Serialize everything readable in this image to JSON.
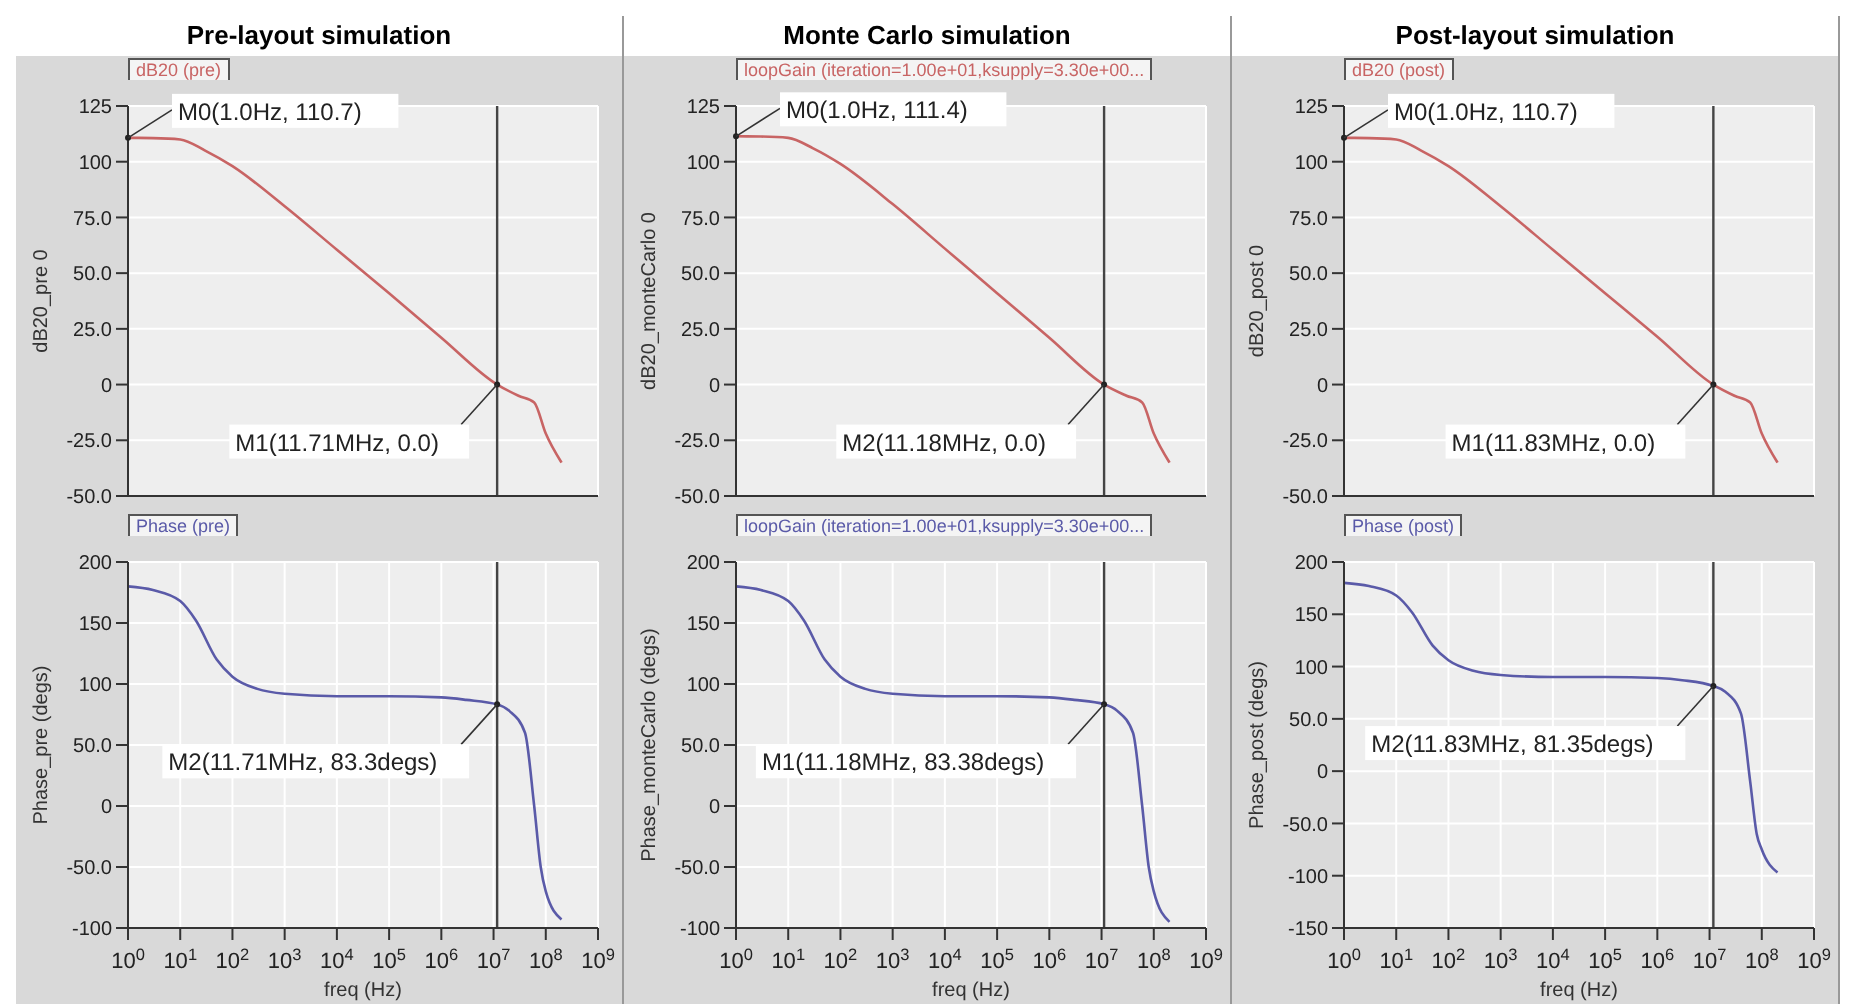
{
  "chart_data": [
    {
      "type": "line",
      "title": "Pre-layout simulation",
      "ylabel": "dB20_pre 0",
      "tick_labels": "y",
      "log": "x",
      "grid": true,
      "legend": "top left",
      "xlim": [
        1,
        1000000000
      ],
      "xticks": [
        {
          "value": 1,
          "label": null
        },
        {
          "value": 10,
          "label": null
        },
        {
          "value": 100,
          "label": null
        },
        {
          "value": 1000,
          "label": null
        },
        {
          "value": 10000,
          "label": null
        },
        {
          "value": 100000,
          "label": null
        },
        {
          "value": 1000000,
          "label": null
        },
        {
          "value": 10000000,
          "label": null
        },
        {
          "value": 100000000,
          "label": null
        },
        {
          "value": 1000000000,
          "label": null
        }
      ],
      "ylim": [
        -50,
        125
      ],
      "yticks": [
        {
          "value": -50,
          "label": "-50.0"
        },
        {
          "value": -25,
          "label": "-25.0"
        },
        0,
        {
          "value": 25,
          "label": "25.0"
        },
        {
          "value": 50,
          "label": "50.0"
        },
        {
          "value": 75,
          "label": "75.0"
        },
        100,
        125
      ],
      "x": [
        1,
        3,
        10,
        30,
        100,
        1000,
        10000,
        100000,
        1000000,
        11710000,
        30000000,
        60000000,
        100000000,
        200000000
      ],
      "series": [
        {
          "name": "dB20 (pre)",
          "color": "#c86464",
          "values": [
            110.7,
            110.6,
            110,
            105,
            98,
            80,
            60.5,
            41,
            21,
            0,
            -5,
            -8,
            -22,
            -35
          ]
        }
      ],
      "ref_lines": [
        {
          "axis": "x",
          "value": 11710000,
          "color": "#444444"
        }
      ],
      "annotations": [
        {
          "text": "M0(1.0Hz, 110.7)",
          "x": 1,
          "y": 110.7
        },
        {
          "text": "M1(11.71MHz, 0.0)",
          "x": 11710000,
          "y": 0
        }
      ]
    },
    {
      "type": "line",
      "title": "Monte Carlo simulation",
      "ylabel": "dB20_monteCarlo 0",
      "tick_labels": "y",
      "log": "x",
      "grid": true,
      "legend": "top left",
      "xlim": [
        1,
        1000000000
      ],
      "xticks": [
        {
          "value": 1,
          "label": null
        },
        {
          "value": 10,
          "label": null
        },
        {
          "value": 100,
          "label": null
        },
        {
          "value": 1000,
          "label": null
        },
        {
          "value": 10000,
          "label": null
        },
        {
          "value": 100000,
          "label": null
        },
        {
          "value": 1000000,
          "label": null
        },
        {
          "value": 10000000,
          "label": null
        },
        {
          "value": 100000000,
          "label": null
        },
        {
          "value": 1000000000,
          "label": null
        }
      ],
      "ylim": [
        -50,
        125
      ],
      "yticks": [
        {
          "value": -50,
          "label": "-50.0"
        },
        {
          "value": -25,
          "label": "-25.0"
        },
        0,
        {
          "value": 25,
          "label": "25.0"
        },
        {
          "value": 50,
          "label": "50.0"
        },
        {
          "value": 75,
          "label": "75.0"
        },
        100,
        125
      ],
      "x": [
        1,
        3,
        10,
        30,
        100,
        1000,
        10000,
        100000,
        1000000,
        11180000,
        30000000,
        60000000,
        100000000,
        200000000
      ],
      "series": [
        {
          "name": "loopGain (iteration=1.00e+01,ksupply=3.30e+00...",
          "color": "#c86464",
          "values": [
            111.4,
            111.3,
            110.7,
            106,
            99,
            81,
            61,
            41,
            21,
            0,
            -5,
            -8,
            -22,
            -35
          ]
        }
      ],
      "ref_lines": [
        {
          "axis": "x",
          "value": 11180000,
          "color": "#444444"
        }
      ],
      "annotations": [
        {
          "text": "M0(1.0Hz, 111.4)",
          "x": 1,
          "y": 111.4
        },
        {
          "text": "M2(11.18MHz, 0.0)",
          "x": 11180000,
          "y": 0
        }
      ]
    },
    {
      "type": "line",
      "title": "Post-layout simulation",
      "ylabel": "dB20_post 0",
      "tick_labels": "y",
      "log": "x",
      "grid": true,
      "legend": "top left",
      "xlim": [
        1,
        1000000000
      ],
      "xticks": [
        {
          "value": 1,
          "label": null
        },
        {
          "value": 10,
          "label": null
        },
        {
          "value": 100,
          "label": null
        },
        {
          "value": 1000,
          "label": null
        },
        {
          "value": 10000,
          "label": null
        },
        {
          "value": 100000,
          "label": null
        },
        {
          "value": 1000000,
          "label": null
        },
        {
          "value": 10000000,
          "label": null
        },
        {
          "value": 100000000,
          "label": null
        },
        {
          "value": 1000000000,
          "label": null
        }
      ],
      "ylim": [
        -50,
        125
      ],
      "yticks": [
        {
          "value": -50,
          "label": "-50.0"
        },
        {
          "value": -25,
          "label": "-25.0"
        },
        0,
        {
          "value": 25,
          "label": "25.0"
        },
        {
          "value": 50,
          "label": "50.0"
        },
        {
          "value": 75,
          "label": "75.0"
        },
        100,
        125
      ],
      "x": [
        1,
        3,
        10,
        30,
        100,
        1000,
        10000,
        100000,
        1000000,
        11830000,
        30000000,
        60000000,
        100000000,
        200000000
      ],
      "series": [
        {
          "name": "dB20 (post)",
          "color": "#c86464",
          "values": [
            110.7,
            110.6,
            110,
            105,
            98,
            80,
            60.5,
            41,
            21.5,
            0,
            -5,
            -8,
            -22,
            -35
          ]
        }
      ],
      "ref_lines": [
        {
          "axis": "x",
          "value": 11830000,
          "color": "#444444"
        }
      ],
      "annotations": [
        {
          "text": "M0(1.0Hz, 110.7)",
          "x": 1,
          "y": 110.7
        },
        {
          "text": "M1(11.83MHz, 0.0)",
          "x": 11830000,
          "y": 0
        }
      ]
    },
    {
      "type": "line",
      "xlabel": "freq (Hz)",
      "ylabel": "Phase_pre (degs)",
      "log": "x",
      "grid": true,
      "legend": "top left",
      "xlim": [
        1,
        1000000000
      ],
      "xticks": [
        {
          "value": 1,
          "label": "10$^{0}$"
        },
        {
          "value": 10,
          "label": "10$^{1}$"
        },
        {
          "value": 100,
          "label": "10$^{2}$"
        },
        {
          "value": 1000,
          "label": "10$^{3}$"
        },
        {
          "value": 10000,
          "label": "10$^{4}$"
        },
        {
          "value": 100000,
          "label": "10$^{5}$"
        },
        {
          "value": 1000000,
          "label": "10$^{6}$"
        },
        {
          "value": 10000000,
          "label": "10$^{7}$"
        },
        {
          "value": 100000000,
          "label": "10$^{8}$"
        },
        {
          "value": 1000000000,
          "label": "10$^{9}$"
        }
      ],
      "ylim": [
        -100,
        200
      ],
      "yticks": [
        -100,
        {
          "value": -50,
          "label": "-50.0"
        },
        0,
        {
          "value": 50,
          "label": "50.0"
        },
        100,
        150,
        200
      ],
      "x": [
        1,
        3,
        10,
        20,
        50,
        100,
        300,
        1000,
        10000,
        100000,
        1000000,
        3000000,
        11710000,
        20000000,
        40000000,
        60000000,
        80000000,
        100000000,
        200000000
      ],
      "series": [
        {
          "name": "Phase (pre)",
          "color": "#5a5aa8",
          "values": [
            180,
            177,
            168,
            152,
            120,
            106,
            96,
            92,
            90,
            90,
            89,
            87,
            83.3,
            78,
            60,
            0,
            -50,
            -70,
            -93
          ]
        }
      ],
      "ref_lines": [
        {
          "axis": "x",
          "value": 11710000,
          "color": "#444444"
        }
      ],
      "annotations": [
        {
          "text": "M2(11.71MHz, 83.3degs)",
          "x": 11710000,
          "y": 83.3
        }
      ]
    },
    {
      "type": "line",
      "xlabel": "freq (Hz)",
      "ylabel": "Phase_monteCarlo (degs)",
      "log": "x",
      "grid": true,
      "legend": "top left",
      "xlim": [
        1,
        1000000000
      ],
      "xticks": [
        {
          "value": 1,
          "label": "10$^{0}$"
        },
        {
          "value": 10,
          "label": "10$^{1}$"
        },
        {
          "value": 100,
          "label": "10$^{2}$"
        },
        {
          "value": 1000,
          "label": "10$^{3}$"
        },
        {
          "value": 10000,
          "label": "10$^{4}$"
        },
        {
          "value": 100000,
          "label": "10$^{5}$"
        },
        {
          "value": 1000000,
          "label": "10$^{6}$"
        },
        {
          "value": 10000000,
          "label": "10$^{7}$"
        },
        {
          "value": 100000000,
          "label": "10$^{8}$"
        },
        {
          "value": 1000000000,
          "label": "10$^{9}$"
        }
      ],
      "ylim": [
        -100,
        200
      ],
      "yticks": [
        -100,
        {
          "value": -50,
          "label": "-50.0"
        },
        0,
        {
          "value": 50,
          "label": "50.0"
        },
        100,
        150,
        200
      ],
      "x": [
        1,
        3,
        10,
        20,
        50,
        100,
        300,
        1000,
        10000,
        100000,
        1000000,
        3000000,
        11180000,
        20000000,
        40000000,
        60000000,
        80000000,
        100000000,
        200000000
      ],
      "series": [
        {
          "name": "loopGain (iteration=1.00e+01,ksupply=3.30e+00...",
          "color": "#5a5aa8",
          "values": [
            180,
            177,
            168,
            152,
            120,
            106,
            96,
            92,
            90,
            90,
            89,
            87,
            83.38,
            78,
            60,
            0,
            -50,
            -70,
            -95
          ]
        }
      ],
      "ref_lines": [
        {
          "axis": "x",
          "value": 11180000,
          "color": "#444444"
        }
      ],
      "annotations": [
        {
          "text": "M1(11.18MHz, 83.38degs)",
          "x": 11180000,
          "y": 83.38
        }
      ]
    },
    {
      "type": "line",
      "xlabel": "freq (Hz)",
      "ylabel": "Phase_post (degs)",
      "log": "x",
      "grid": true,
      "legend": "top left",
      "xlim": [
        1,
        1000000000
      ],
      "xticks": [
        {
          "value": 1,
          "label": "10$^{0}$"
        },
        {
          "value": 10,
          "label": "10$^{1}$"
        },
        {
          "value": 100,
          "label": "10$^{2}$"
        },
        {
          "value": 1000,
          "label": "10$^{3}$"
        },
        {
          "value": 10000,
          "label": "10$^{4}$"
        },
        {
          "value": 100000,
          "label": "10$^{5}$"
        },
        {
          "value": 1000000,
          "label": "10$^{6}$"
        },
        {
          "value": 10000000,
          "label": "10$^{7}$"
        },
        {
          "value": 100000000,
          "label": "10$^{8}$"
        },
        {
          "value": 1000000000,
          "label": "10$^{9}$"
        }
      ],
      "ylim": [
        -150,
        200
      ],
      "yticks": [
        -150,
        -100,
        {
          "value": -50,
          "label": "-50.0"
        },
        0,
        {
          "value": 50,
          "label": "50.0"
        },
        100,
        150,
        200
      ],
      "x": [
        1,
        3,
        10,
        20,
        50,
        100,
        300,
        1000,
        10000,
        100000,
        1000000,
        3000000,
        11830000,
        20000000,
        40000000,
        60000000,
        80000000,
        100000000,
        200000000
      ],
      "series": [
        {
          "name": "Phase (post)",
          "color": "#5a5aa8",
          "values": [
            180,
            177,
            168,
            152,
            120,
            106,
            96,
            92,
            90,
            90,
            89,
            87,
            81.35,
            76,
            55,
            -10,
            -60,
            -75,
            -97
          ]
        }
      ],
      "ref_lines": [
        {
          "axis": "x",
          "value": 11830000,
          "color": "#444444"
        }
      ],
      "annotations": [
        {
          "text": "M2(11.83MHz, 81.35degs)",
          "x": 11830000,
          "y": 81.35
        }
      ]
    }
  ]
}
